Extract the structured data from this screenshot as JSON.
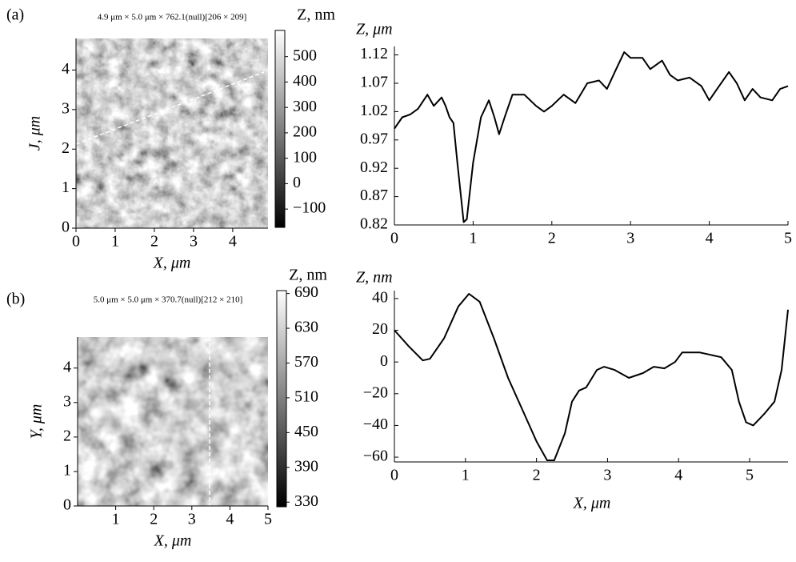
{
  "chart_data": [
    {
      "type": "image",
      "panel": "(a)",
      "title": "4.9 μm × 5.0 μm × 762.1(null)[206 × 209]",
      "xlabel": "X, μm",
      "ylabel": "J, μm",
      "xlim": [
        0,
        4.9
      ],
      "ylim": [
        0,
        4.8
      ],
      "xticks": [
        0,
        1,
        2,
        3,
        4
      ],
      "yticks": [
        0,
        1,
        2,
        3,
        4
      ],
      "colorbar": {
        "label": "Z, nm",
        "lim": [
          -172,
          603
        ],
        "ticks": [
          {
            "value": -100,
            "label": "−100"
          },
          0,
          100,
          200,
          300,
          400,
          500
        ]
      }
    },
    {
      "type": "line",
      "ylabel": "Z, μm",
      "xlim": [
        0,
        5
      ],
      "ylim": [
        0.82,
        1.135
      ],
      "xticks": [
        0,
        1,
        2,
        3,
        4,
        5
      ],
      "yticks": [
        0.82,
        0.87,
        0.92,
        0.97,
        1.02,
        1.07,
        1.12
      ],
      "color": "#000000",
      "x": [
        0,
        0.1,
        0.2,
        0.3,
        0.42,
        0.5,
        0.6,
        0.65,
        0.7,
        0.75,
        0.8,
        0.88,
        0.92,
        1.0,
        1.1,
        1.2,
        1.27,
        1.33,
        1.4,
        1.5,
        1.65,
        1.8,
        1.9,
        2.0,
        2.15,
        2.3,
        2.45,
        2.6,
        2.7,
        2.8,
        2.92,
        3.0,
        3.15,
        3.25,
        3.4,
        3.5,
        3.6,
        3.75,
        3.9,
        4.0,
        4.1,
        4.25,
        4.35,
        4.45,
        4.55,
        4.65,
        4.8,
        4.9,
        5.0
      ],
      "values": [
        0.99,
        1.01,
        1.015,
        1.025,
        1.05,
        1.03,
        1.045,
        1.03,
        1.01,
        1.0,
        0.93,
        0.825,
        0.83,
        0.93,
        1.01,
        1.04,
        1.01,
        0.98,
        1.01,
        1.05,
        1.05,
        1.03,
        1.02,
        1.03,
        1.05,
        1.035,
        1.07,
        1.075,
        1.06,
        1.09,
        1.125,
        1.115,
        1.115,
        1.095,
        1.11,
        1.085,
        1.075,
        1.08,
        1.065,
        1.04,
        1.06,
        1.09,
        1.07,
        1.04,
        1.06,
        1.045,
        1.04,
        1.06,
        1.065
      ]
    },
    {
      "type": "image",
      "panel": "(b)",
      "title": "5.0 μm × 5.0 μm × 370.7(null)[212 × 210]",
      "xlabel": "X, μm",
      "ylabel": "Y, μm",
      "xlim": [
        0,
        5
      ],
      "ylim": [
        0,
        4.9
      ],
      "xticks": [
        1,
        2,
        3,
        4,
        5
      ],
      "yticks": [
        0,
        1,
        2,
        3,
        4
      ],
      "colorbar": {
        "label": "Z, nm",
        "lim": [
          322,
          695
        ],
        "ticks": [
          330,
          390,
          450,
          510,
          570,
          630,
          690
        ]
      }
    },
    {
      "type": "line",
      "ylabel": "Z, nm",
      "xlabel": "X, μm",
      "xlim": [
        0,
        5.54
      ],
      "ylim": [
        -63,
        45
      ],
      "xticks": [
        0,
        1,
        2,
        3,
        4,
        5
      ],
      "yticks": [
        {
          "value": -60,
          "label": "−60"
        },
        {
          "value": -40,
          "label": "−40"
        },
        {
          "value": -20,
          "label": "−20"
        },
        0,
        20,
        40
      ],
      "color": "#000000",
      "x": [
        0,
        0.2,
        0.4,
        0.5,
        0.7,
        0.9,
        1.05,
        1.2,
        1.4,
        1.6,
        1.8,
        2.0,
        2.15,
        2.25,
        2.4,
        2.5,
        2.6,
        2.7,
        2.85,
        2.95,
        3.1,
        3.3,
        3.5,
        3.65,
        3.8,
        3.95,
        4.05,
        4.3,
        4.6,
        4.75,
        4.85,
        4.95,
        5.05,
        5.2,
        5.35,
        5.45,
        5.54
      ],
      "values": [
        20,
        10,
        1,
        2,
        15,
        35,
        43,
        38,
        15,
        -10,
        -30,
        -50,
        -62,
        -62,
        -45,
        -25,
        -18,
        -16,
        -5,
        -3,
        -5,
        -10,
        -7,
        -3,
        -4,
        0,
        6,
        6,
        3,
        -5,
        -25,
        -38,
        -40,
        -33,
        -25,
        -5,
        33
      ]
    }
  ]
}
